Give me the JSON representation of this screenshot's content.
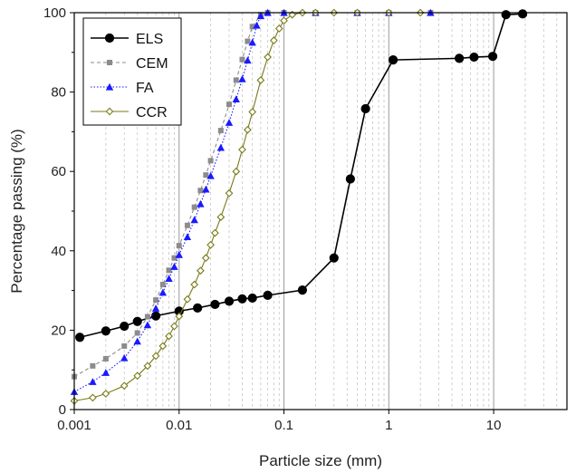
{
  "chart_data": {
    "type": "line",
    "xlabel": "Particle size (mm)",
    "ylabel": "Percentage passing (%)",
    "xscale": "log",
    "xlim": [
      0.001,
      50
    ],
    "ylim": [
      0,
      100
    ],
    "grid": "vertical minor and major lines on x",
    "legend_position": "top-left",
    "x_ticks": [
      "0.001",
      "0.01",
      "0.1",
      "1",
      "10"
    ],
    "y_ticks": [
      "0",
      "20",
      "40",
      "60",
      "80",
      "100"
    ],
    "series": [
      {
        "name": "ELS",
        "color": "#000000",
        "marker": "circle",
        "line": "solid",
        "x": [
          0.00113,
          0.002,
          0.003,
          0.004,
          0.006,
          0.01,
          0.015,
          0.022,
          0.03,
          0.04,
          0.05,
          0.07,
          0.15,
          0.3,
          0.43,
          0.6,
          1.1,
          4.7,
          6.5,
          9.8,
          13.1,
          18.9
        ],
        "y": [
          18.2,
          19.8,
          21.0,
          22.2,
          23.6,
          24.8,
          25.6,
          26.5,
          27.3,
          27.9,
          28.1,
          28.8,
          30.1,
          38.2,
          58.1,
          75.8,
          88.1,
          88.5,
          88.8,
          89.0,
          99.5,
          99.7
        ]
      },
      {
        "name": "CEM",
        "color": "#8c8c8c",
        "marker": "square",
        "line": "dashed",
        "x": [
          0.001,
          0.0015,
          0.002,
          0.003,
          0.004,
          0.005,
          0.006,
          0.007,
          0.008,
          0.009,
          0.01,
          0.012,
          0.014,
          0.016,
          0.018,
          0.02,
          0.025,
          0.03,
          0.035,
          0.04,
          0.045,
          0.05,
          0.06,
          0.07,
          0.1,
          0.2,
          0.5,
          1.0,
          2.5
        ],
        "y": [
          8.3,
          11.0,
          12.8,
          16.0,
          19.3,
          23.4,
          27.6,
          31.5,
          35.1,
          38.2,
          41.3,
          46.4,
          51.0,
          55.2,
          59.1,
          62.7,
          70.3,
          76.9,
          83.0,
          88.2,
          92.8,
          96.5,
          99.5,
          100,
          100,
          100,
          100,
          100,
          100
        ]
      },
      {
        "name": "FA",
        "color": "#1a1aff",
        "marker": "triangle",
        "line": "dotted",
        "x": [
          0.001,
          0.0015,
          0.002,
          0.003,
          0.004,
          0.005,
          0.006,
          0.007,
          0.008,
          0.009,
          0.01,
          0.012,
          0.014,
          0.016,
          0.018,
          0.02,
          0.025,
          0.03,
          0.035,
          0.04,
          0.045,
          0.05,
          0.055,
          0.06,
          0.07,
          0.1,
          0.2,
          0.5,
          1.0,
          2.5
        ],
        "y": [
          4.5,
          7.0,
          9.3,
          13.0,
          17.2,
          21.3,
          25.5,
          29.5,
          33.0,
          36.0,
          39.0,
          43.5,
          47.8,
          51.8,
          55.5,
          58.9,
          66.0,
          72.3,
          78.2,
          83.3,
          88.0,
          92.5,
          96.8,
          99.2,
          100,
          100,
          100,
          100,
          100,
          100
        ]
      },
      {
        "name": "CCR",
        "color": "#7a7a1a",
        "marker": "diamond",
        "line": "solid",
        "x": [
          0.001,
          0.0015,
          0.002,
          0.003,
          0.004,
          0.005,
          0.006,
          0.007,
          0.008,
          0.009,
          0.01,
          0.012,
          0.014,
          0.016,
          0.018,
          0.02,
          0.022,
          0.025,
          0.03,
          0.035,
          0.04,
          0.045,
          0.05,
          0.06,
          0.07,
          0.08,
          0.09,
          0.1,
          0.12,
          0.15,
          0.2,
          0.3,
          0.5,
          1.0,
          2.0
        ],
        "y": [
          2.2,
          3.0,
          4.0,
          6.0,
          8.5,
          11.0,
          13.5,
          16.0,
          18.5,
          21.0,
          23.5,
          27.8,
          31.5,
          35.0,
          38.2,
          41.5,
          44.5,
          48.5,
          54.5,
          60.0,
          65.5,
          70.5,
          75.0,
          83.0,
          88.8,
          93.0,
          96.0,
          98.0,
          99.5,
          100,
          100,
          100,
          100,
          100,
          100
        ]
      }
    ]
  }
}
